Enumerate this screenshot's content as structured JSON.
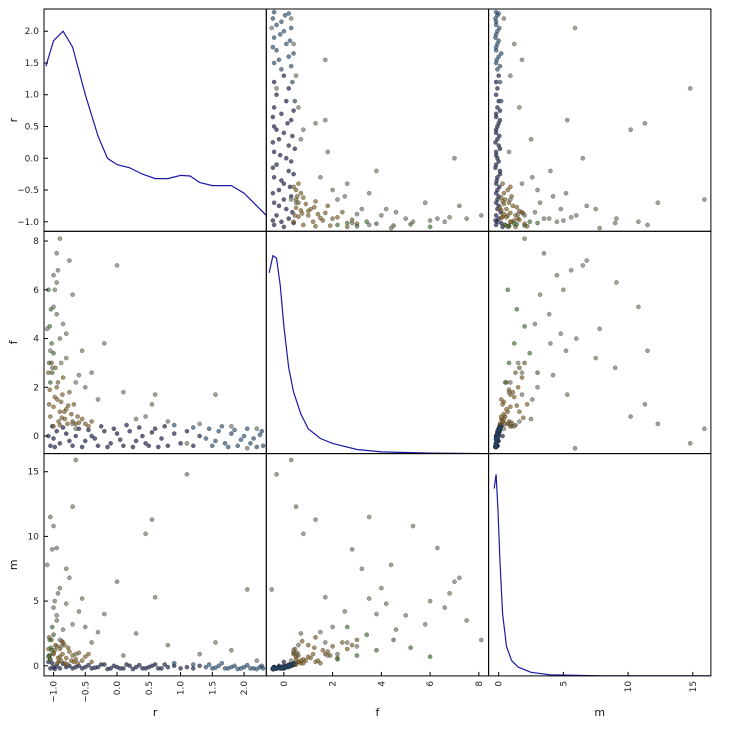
{
  "chart_data": {
    "type": "scatter-matrix",
    "variables": [
      "r",
      "f",
      "m"
    ],
    "ranges": {
      "r": [
        -1.15,
        2.35
      ],
      "f": [
        -0.72,
        8.4
      ],
      "m": [
        -0.78,
        16.4
      ]
    },
    "ticks": {
      "r": [
        "-1.0",
        "-0.5",
        "0.0",
        "0.5",
        "1.0",
        "1.5",
        "2.0"
      ],
      "f": [
        "0",
        "2",
        "4",
        "6",
        "8"
      ],
      "m": [
        "0",
        "5",
        "10",
        "15"
      ]
    },
    "diagonal": "kde",
    "kde": {
      "r": {
        "x": [
          -1.12,
          -1.0,
          -0.85,
          -0.7,
          -0.5,
          -0.3,
          -0.15,
          0.0,
          0.2,
          0.4,
          0.6,
          0.8,
          1.0,
          1.15,
          1.3,
          1.5,
          1.8,
          2.0,
          2.2,
          2.35
        ],
        "y": [
          1.45,
          1.85,
          2.0,
          1.75,
          1.0,
          0.35,
          0.0,
          -0.1,
          -0.15,
          -0.25,
          -0.32,
          -0.32,
          -0.27,
          -0.28,
          -0.38,
          -0.43,
          -0.43,
          -0.55,
          -0.75,
          -0.9
        ]
      },
      "f": {
        "x": [
          -0.6,
          -0.45,
          -0.3,
          -0.15,
          0,
          0.2,
          0.4,
          0.7,
          1.0,
          1.5,
          2,
          3,
          4,
          6,
          8.3
        ],
        "y": [
          6.7,
          7.4,
          7.3,
          6.2,
          4.5,
          2.8,
          1.8,
          0.9,
          0.3,
          -0.1,
          -0.3,
          -0.55,
          -0.65,
          -0.7,
          -0.72
        ]
      },
      "m": {
        "x": [
          -0.35,
          -0.2,
          -0.05,
          0.1,
          0.3,
          0.6,
          1,
          1.5,
          2.5,
          4,
          8,
          16.3
        ],
        "y": [
          13.7,
          14.8,
          12,
          8,
          4,
          1.5,
          0.4,
          -0.1,
          -0.5,
          -0.7,
          -0.77,
          -0.78
        ]
      }
    },
    "point_colors": [
      "#0e1440",
      "#24496b",
      "#7b5a1c",
      "#6e705e",
      "#3b6a2e"
    ],
    "points": [
      [
        -1.05,
        -0.4,
        -0.2,
        0
      ],
      [
        -1.0,
        -0.1,
        -0.1,
        0
      ],
      [
        -0.95,
        0.2,
        0.0,
        0
      ],
      [
        -0.9,
        -0.3,
        -0.2,
        0
      ],
      [
        -0.8,
        0.1,
        -0.1,
        0
      ],
      [
        -0.7,
        -0.4,
        -0.2,
        0
      ],
      [
        -0.6,
        0.3,
        0.0,
        0
      ],
      [
        -0.5,
        -0.2,
        -0.1,
        0
      ],
      [
        -0.4,
        0.0,
        -0.2,
        0
      ],
      [
        -0.3,
        -0.4,
        -0.1,
        0
      ],
      [
        -0.2,
        0.2,
        0.1,
        0
      ],
      [
        -0.1,
        -0.3,
        -0.2,
        0
      ],
      [
        0.0,
        0.1,
        -0.1,
        0
      ],
      [
        0.1,
        -0.4,
        -0.2,
        0
      ],
      [
        0.2,
        0.2,
        0.0,
        0
      ],
      [
        0.3,
        -0.2,
        -0.1,
        0
      ],
      [
        0.4,
        0.0,
        -0.2,
        0
      ],
      [
        0.5,
        -0.4,
        -0.1,
        0
      ],
      [
        0.6,
        0.3,
        0.1,
        0
      ],
      [
        0.7,
        -0.1,
        -0.2,
        0
      ],
      [
        0.8,
        -0.4,
        -0.1,
        0
      ],
      [
        0.9,
        0.1,
        0.0,
        0
      ],
      [
        1.0,
        -0.3,
        -0.2,
        0
      ],
      [
        1.1,
        0.2,
        -0.1,
        0
      ],
      [
        1.2,
        -0.4,
        -0.2,
        0
      ],
      [
        1.3,
        0.0,
        0.0,
        0
      ],
      [
        -1.08,
        0.0,
        0.3,
        0
      ],
      [
        -1.02,
        0.4,
        0.2,
        0
      ],
      [
        -0.98,
        -0.45,
        -0.25,
        0
      ],
      [
        -0.85,
        0.35,
        0.15,
        0
      ],
      [
        -0.75,
        -0.2,
        0.0,
        0
      ],
      [
        -0.65,
        0.0,
        -0.1,
        0
      ],
      [
        -0.55,
        -0.45,
        -0.2,
        0
      ],
      [
        -0.45,
        0.25,
        0.05,
        0
      ],
      [
        -0.35,
        -0.1,
        -0.15,
        0
      ],
      [
        -0.25,
        0.4,
        0.1,
        0
      ],
      [
        -0.15,
        -0.45,
        -0.25,
        0
      ],
      [
        -0.05,
        0.3,
        0.0,
        0
      ],
      [
        0.05,
        -0.15,
        -0.2,
        0
      ],
      [
        0.15,
        0.45,
        0.1,
        0
      ],
      [
        0.25,
        -0.45,
        -0.25,
        0
      ],
      [
        0.35,
        0.35,
        0.05,
        0
      ],
      [
        0.45,
        -0.3,
        -0.2,
        0
      ],
      [
        0.55,
        0.15,
        0.0,
        0
      ],
      [
        0.65,
        -0.45,
        -0.2,
        0
      ],
      [
        0.75,
        0.4,
        0.1,
        0
      ],
      [
        1.4,
        -0.1,
        -0.1,
        1
      ],
      [
        1.5,
        -0.4,
        -0.2,
        1
      ],
      [
        1.6,
        0.2,
        0.0,
        1
      ],
      [
        1.7,
        -0.3,
        -0.2,
        1
      ],
      [
        1.8,
        0.1,
        -0.1,
        1
      ],
      [
        1.9,
        -0.4,
        -0.25,
        1
      ],
      [
        2.0,
        0.0,
        -0.1,
        1
      ],
      [
        2.1,
        -0.3,
        -0.2,
        1
      ],
      [
        2.2,
        -0.45,
        -0.25,
        1
      ],
      [
        2.25,
        0.05,
        -0.1,
        1
      ],
      [
        1.45,
        0.3,
        0.1,
        1
      ],
      [
        1.55,
        -0.2,
        -0.15,
        1
      ],
      [
        1.65,
        0.4,
        0.2,
        1
      ],
      [
        1.75,
        -0.45,
        -0.2,
        1
      ],
      [
        1.85,
        0.25,
        0.0,
        1
      ],
      [
        1.95,
        -0.15,
        -0.2,
        1
      ],
      [
        2.05,
        0.3,
        0.05,
        1
      ],
      [
        2.15,
        -0.1,
        -0.2,
        1
      ],
      [
        2.3,
        -0.4,
        -0.2,
        1
      ],
      [
        1.2,
        0.35,
        0.1,
        1
      ],
      [
        0.9,
        0.45,
        0.2,
        1
      ],
      [
        2.28,
        0.2,
        0.0,
        1
      ],
      [
        -1.05,
        0.8,
        0.5,
        2
      ],
      [
        -1.0,
        1.2,
        0.9,
        2
      ],
      [
        -0.98,
        1.6,
        1.2,
        2
      ],
      [
        -0.95,
        2.0,
        1.5,
        2
      ],
      [
        -0.92,
        0.6,
        0.3,
        2
      ],
      [
        -0.9,
        1.0,
        0.7,
        2
      ],
      [
        -0.88,
        1.4,
        0.4,
        2
      ],
      [
        -0.85,
        2.4,
        1.8,
        2
      ],
      [
        -0.82,
        0.7,
        0.2,
        2
      ],
      [
        -0.8,
        1.1,
        0.6,
        2
      ],
      [
        -0.78,
        0.5,
        0.1,
        2
      ],
      [
        -0.75,
        1.8,
        1.1,
        2
      ],
      [
        -0.72,
        0.9,
        0.4,
        2
      ],
      [
        -0.7,
        0.6,
        0.8,
        2
      ],
      [
        -0.68,
        1.3,
        0.3,
        2
      ],
      [
        -0.65,
        0.5,
        0.5,
        2
      ],
      [
        -0.62,
        0.8,
        0.2,
        2
      ],
      [
        -1.08,
        2.6,
        1.3,
        2
      ],
      [
        -1.06,
        1.9,
        0.8,
        2
      ],
      [
        -1.03,
        3.0,
        2.0,
        2
      ],
      [
        -1.0,
        0.4,
        1.0,
        2
      ],
      [
        -0.97,
        2.8,
        1.6,
        2
      ],
      [
        -0.94,
        1.5,
        0.2,
        2
      ],
      [
        -0.9,
        0.45,
        1.3,
        2
      ],
      [
        -0.86,
        1.7,
        0.9,
        2
      ],
      [
        -0.83,
        1.0,
        1.6,
        2
      ],
      [
        -0.6,
        0.55,
        1.0,
        2
      ],
      [
        -0.55,
        0.7,
        0.4,
        2
      ],
      [
        -0.5,
        0.5,
        0.7,
        2
      ],
      [
        -0.45,
        0.4,
        0.9,
        2
      ],
      [
        -0.4,
        0.6,
        0.3,
        2
      ],
      [
        -1.07,
        1.3,
        2.2,
        2
      ],
      [
        -0.93,
        2.2,
        0.6,
        2
      ],
      [
        -0.87,
        0.75,
        1.9,
        2
      ],
      [
        -0.77,
        1.25,
        1.4,
        2
      ],
      [
        -0.65,
        0.3,
        15.9,
        3
      ],
      [
        1.1,
        -0.3,
        14.8,
        3
      ],
      [
        -0.7,
        0.5,
        12.3,
        3
      ],
      [
        0.55,
        1.3,
        11.3,
        3
      ],
      [
        0.45,
        0.8,
        10.2,
        3
      ],
      [
        2.05,
        -0.5,
        5.9,
        3
      ],
      [
        0.6,
        1.7,
        5.3,
        3
      ],
      [
        0.0,
        7.0,
        6.5,
        3
      ],
      [
        -0.95,
        6.3,
        9.1,
        3
      ],
      [
        -1.0,
        5.3,
        10.8,
        3
      ],
      [
        1.55,
        1.7,
        1.8,
        3
      ],
      [
        -0.9,
        8.1,
        2.0,
        3
      ],
      [
        -0.95,
        7.5,
        3.5,
        3
      ],
      [
        -1.0,
        6.6,
        4.5,
        3
      ],
      [
        -0.85,
        4.6,
        2.8,
        3
      ],
      [
        -0.7,
        5.8,
        3.2,
        3
      ],
      [
        -0.9,
        4.0,
        6.0,
        3
      ],
      [
        -1.05,
        3.5,
        11.5,
        3
      ],
      [
        -1.02,
        2.8,
        9.0,
        3
      ],
      [
        -0.8,
        3.2,
        7.5,
        3
      ],
      [
        -0.98,
        6.0,
        5.0,
        3
      ],
      [
        -0.6,
        2.5,
        4.2,
        3
      ],
      [
        -1.1,
        4.4,
        7.8,
        3
      ],
      [
        -0.5,
        2.0,
        3.0,
        3
      ],
      [
        -0.3,
        1.5,
        2.6,
        3
      ],
      [
        0.1,
        1.8,
        0.8,
        3
      ],
      [
        0.3,
        0.7,
        2.5,
        3
      ],
      [
        0.8,
        0.6,
        1.6,
        3
      ],
      [
        1.3,
        0.5,
        0.9,
        3
      ],
      [
        1.8,
        0.4,
        1.2,
        3
      ],
      [
        2.2,
        0.3,
        0.4,
        3
      ],
      [
        -0.2,
        3.8,
        4.0,
        3
      ],
      [
        -0.75,
        7.2,
        6.8,
        3
      ],
      [
        -0.93,
        6.8,
        5.6,
        3
      ],
      [
        -0.88,
        3.0,
        1.5,
        3
      ],
      [
        -0.65,
        2.2,
        0.9,
        3
      ],
      [
        -0.55,
        3.5,
        5.2,
        3
      ],
      [
        -0.4,
        2.6,
        1.8,
        3
      ],
      [
        -0.95,
        5.0,
        3.9,
        3
      ],
      [
        -0.8,
        4.2,
        4.8,
        3
      ],
      [
        -1.05,
        2.2,
        0.5,
        4
      ],
      [
        -1.07,
        3.0,
        0.8,
        4
      ],
      [
        -1.03,
        3.8,
        1.2,
        4
      ],
      [
        -1.06,
        4.5,
        2.0,
        4
      ],
      [
        -1.04,
        5.2,
        1.4,
        4
      ],
      [
        -1.02,
        2.6,
        3.0,
        4
      ],
      [
        -1.08,
        6.0,
        0.7,
        4
      ],
      [
        -1.0,
        3.4,
        2.4,
        4
      ]
    ],
    "line_color": "#1a1aa6",
    "grid": false
  }
}
